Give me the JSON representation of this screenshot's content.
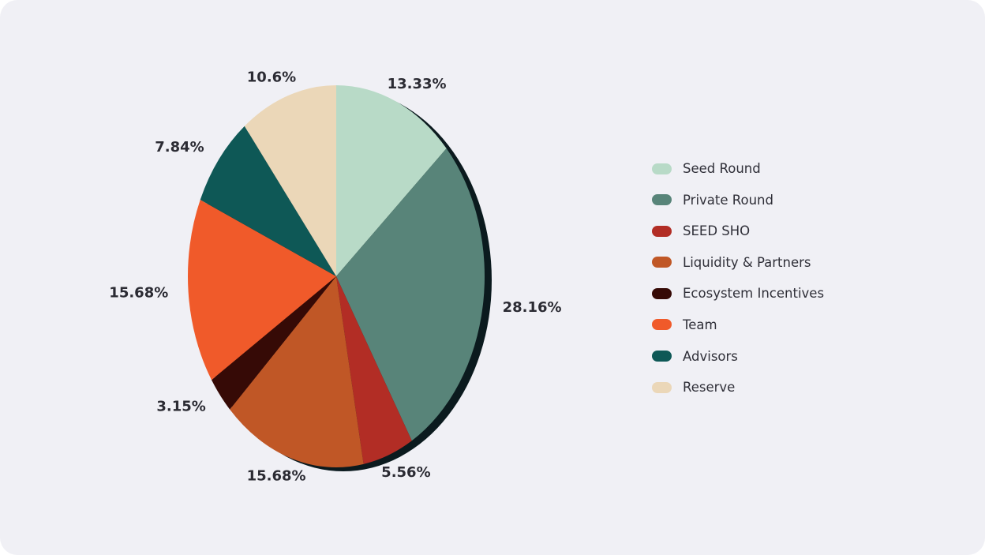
{
  "chart_data": {
    "type": "pie",
    "title": "",
    "start_angle_deg": 0,
    "direction": "clockwise",
    "legend_position": "right",
    "slices": [
      {
        "label": "Seed Round",
        "value": 13.33,
        "display": "13.33%",
        "color": "#b8dac7"
      },
      {
        "label": "Private Round",
        "value": 28.16,
        "display": "28.16%",
        "color": "#588479"
      },
      {
        "label": "SEED SHO",
        "value": 5.56,
        "display": "5.56%",
        "color": "#b22d25"
      },
      {
        "label": "Liquidity & Partners",
        "value": 15.68,
        "display": "15.68%",
        "color": "#c05726"
      },
      {
        "label": "Ecosystem Incentives",
        "value": 3.15,
        "display": "3.15%",
        "color": "#360a06"
      },
      {
        "label": "Team",
        "value": 15.68,
        "display": "15.68%",
        "color": "#f05a2a"
      },
      {
        "label": "Advisors",
        "value": 7.84,
        "display": "7.84%",
        "color": "#0e5856"
      },
      {
        "label": "Reserve",
        "value": 10.6,
        "display": "10.6%",
        "color": "#ebd7b8"
      }
    ],
    "shadow_color": "#0b1a1e",
    "label_color": "#2b2b33"
  }
}
